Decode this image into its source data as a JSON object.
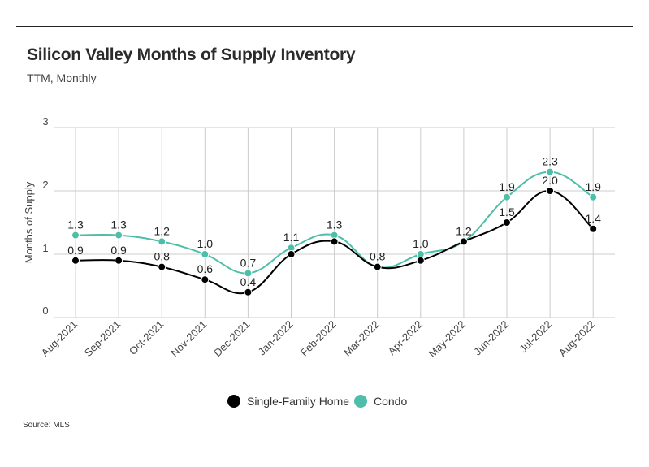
{
  "title": "Silicon Valley Months of Supply Inventory",
  "subtitle": "TTM, Monthly",
  "source": "Source:  MLS",
  "colors": {
    "single_family": "#000000",
    "condo": "#4dbfa8",
    "grid": "#cccccc",
    "rule": "#222222"
  },
  "chart_data": {
    "type": "line",
    "title": "Silicon Valley Months of Supply Inventory",
    "subtitle": "TTM, Monthly",
    "xlabel": "",
    "ylabel": "Months of Supply",
    "ylim": [
      0,
      3
    ],
    "yticks": [
      0,
      1,
      2,
      3
    ],
    "grid": true,
    "legend": "bottom",
    "categories": [
      "Aug-2021",
      "Sep-2021",
      "Oct-2021",
      "Nov-2021",
      "Dec-2021",
      "Jan-2022",
      "Feb-2022",
      "Mar-2022",
      "Apr-2022",
      "May-2022",
      "Jun-2022",
      "Jul-2022",
      "Aug-2022"
    ],
    "series": [
      {
        "name": "Single-Family Home",
        "color": "#000000",
        "values": [
          0.9,
          0.9,
          0.8,
          0.6,
          0.4,
          1.0,
          1.2,
          0.8,
          0.9,
          1.2,
          1.5,
          2.0,
          1.4
        ],
        "labels": [
          "0.9",
          "0.9",
          "0.8",
          "0.6",
          "0.4",
          "",
          "",
          "",
          "",
          "",
          "1.5",
          "2.0",
          "1.4"
        ]
      },
      {
        "name": "Condo",
        "color": "#4dbfa8",
        "values": [
          1.3,
          1.3,
          1.2,
          1.0,
          0.7,
          1.1,
          1.3,
          0.8,
          1.0,
          1.2,
          1.9,
          2.3,
          1.9
        ],
        "labels": [
          "1.3",
          "1.3",
          "1.2",
          "1.0",
          "0.7",
          "1.1",
          "1.3",
          "0.8",
          "1.0",
          "1.2",
          "1.9",
          "2.3",
          "1.9"
        ]
      }
    ]
  }
}
